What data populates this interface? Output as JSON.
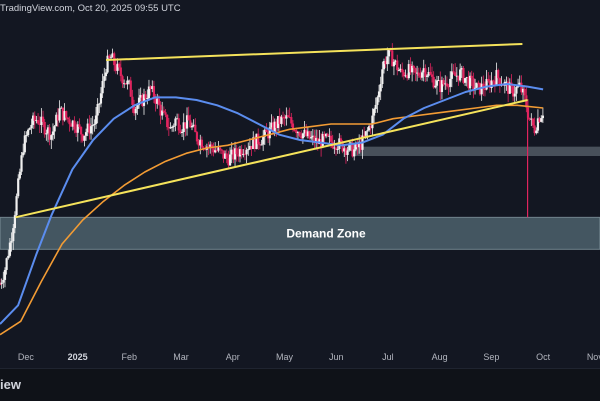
{
  "header": {
    "text": "TradingView.com, Oct 20, 2025 09:55 UTC"
  },
  "footer": {
    "brand": "iew"
  },
  "colors": {
    "background": "#131722",
    "up_candle": "#f0f0f0",
    "down_candle": "#e0245e",
    "ma_fast": "#5b8def",
    "ma_slow": "#f39c34",
    "trendline": "#f5e35b",
    "demand_zone": "#6e8b96",
    "support_band": "#8a96a0"
  },
  "chart_data": {
    "type": "candlestick",
    "title": "",
    "xlabel": "",
    "ylabel": "",
    "x_ticks": [
      {
        "label": "Dec",
        "x": 0.5,
        "bold": false
      },
      {
        "label": "2025",
        "x": 1.5,
        "bold": true
      },
      {
        "label": "Feb",
        "x": 2.5,
        "bold": false
      },
      {
        "label": "Mar",
        "x": 3.5,
        "bold": false
      },
      {
        "label": "Apr",
        "x": 4.5,
        "bold": false
      },
      {
        "label": "May",
        "x": 5.5,
        "bold": false
      },
      {
        "label": "Jun",
        "x": 6.5,
        "bold": false
      },
      {
        "label": "Jul",
        "x": 7.5,
        "bold": false
      },
      {
        "label": "Aug",
        "x": 8.5,
        "bold": false
      },
      {
        "label": "Sep",
        "x": 9.5,
        "bold": false
      },
      {
        "label": "Oct",
        "x": 10.5,
        "bold": false
      },
      {
        "label": "Nov",
        "x": 11.5,
        "bold": false
      }
    ],
    "price_path": [
      [
        0.0,
        2.4
      ],
      [
        0.1,
        3.0
      ],
      [
        0.22,
        4.2
      ],
      [
        0.32,
        5.6
      ],
      [
        0.45,
        7.6
      ],
      [
        0.6,
        8.4
      ],
      [
        0.72,
        8.6
      ],
      [
        0.85,
        8.3
      ],
      [
        1.0,
        8.0
      ],
      [
        1.15,
        8.9
      ],
      [
        1.3,
        8.6
      ],
      [
        1.45,
        8.4
      ],
      [
        1.6,
        8.0
      ],
      [
        1.75,
        8.3
      ],
      [
        1.85,
        8.5
      ],
      [
        1.95,
        9.5
      ],
      [
        2.05,
        10.6
      ],
      [
        2.15,
        10.9
      ],
      [
        2.25,
        10.5
      ],
      [
        2.35,
        10.2
      ],
      [
        2.5,
        9.8
      ],
      [
        2.6,
        9.0
      ],
      [
        2.75,
        9.3
      ],
      [
        2.9,
        9.7
      ],
      [
        3.0,
        9.4
      ],
      [
        3.15,
        8.7
      ],
      [
        3.3,
        8.2
      ],
      [
        3.4,
        8.6
      ],
      [
        3.5,
        8.3
      ],
      [
        3.65,
        8.5
      ],
      [
        3.8,
        7.9
      ],
      [
        4.0,
        7.6
      ],
      [
        4.2,
        7.4
      ],
      [
        4.4,
        7.1
      ],
      [
        4.5,
        7.2
      ],
      [
        4.7,
        7.5
      ],
      [
        4.9,
        7.7
      ],
      [
        5.1,
        7.9
      ],
      [
        5.25,
        8.2
      ],
      [
        5.4,
        8.5
      ],
      [
        5.55,
        8.6
      ],
      [
        5.75,
        8.2
      ],
      [
        5.95,
        7.9
      ],
      [
        6.15,
        7.7
      ],
      [
        6.3,
        7.8
      ],
      [
        6.5,
        7.7
      ],
      [
        6.7,
        7.5
      ],
      [
        6.85,
        7.4
      ],
      [
        7.0,
        7.7
      ],
      [
        7.1,
        8.1
      ],
      [
        7.2,
        8.6
      ],
      [
        7.3,
        9.4
      ],
      [
        7.4,
        10.6
      ],
      [
        7.5,
        11.0
      ],
      [
        7.6,
        10.8
      ],
      [
        7.75,
        10.3
      ],
      [
        7.9,
        10.4
      ],
      [
        8.05,
        10.2
      ],
      [
        8.2,
        10.5
      ],
      [
        8.35,
        10.1
      ],
      [
        8.5,
        9.8
      ],
      [
        8.7,
        10.1
      ],
      [
        8.9,
        10.3
      ],
      [
        9.05,
        10.0
      ],
      [
        9.25,
        9.7
      ],
      [
        9.45,
        9.9
      ],
      [
        9.6,
        10.2
      ],
      [
        9.75,
        9.9
      ],
      [
        9.9,
        9.6
      ],
      [
        10.05,
        9.8
      ],
      [
        10.15,
        9.3
      ],
      [
        10.25,
        8.5
      ],
      [
        10.33,
        8.2
      ],
      [
        10.4,
        8.6
      ],
      [
        10.5,
        8.9
      ]
    ],
    "y_range": [
      0,
      12.6
    ],
    "x_range": [
      0,
      11.6
    ],
    "ma_fast": [
      [
        0.0,
        0.9
      ],
      [
        0.35,
        1.6
      ],
      [
        0.7,
        3.5
      ],
      [
        1.0,
        5.0
      ],
      [
        1.4,
        6.7
      ],
      [
        1.8,
        7.8
      ],
      [
        2.2,
        8.6
      ],
      [
        2.6,
        9.1
      ],
      [
        3.0,
        9.4
      ],
      [
        3.4,
        9.4
      ],
      [
        3.8,
        9.3
      ],
      [
        4.2,
        9.1
      ],
      [
        4.6,
        8.8
      ],
      [
        5.0,
        8.4
      ],
      [
        5.4,
        8.0
      ],
      [
        5.8,
        7.8
      ],
      [
        6.2,
        7.7
      ],
      [
        6.6,
        7.6
      ],
      [
        7.0,
        7.7
      ],
      [
        7.4,
        8.0
      ],
      [
        7.8,
        8.6
      ],
      [
        8.2,
        9.0
      ],
      [
        8.6,
        9.3
      ],
      [
        9.0,
        9.6
      ],
      [
        9.4,
        9.8
      ],
      [
        9.8,
        9.9
      ],
      [
        10.2,
        9.8
      ],
      [
        10.5,
        9.7
      ]
    ],
    "ma_slow": [
      [
        0.0,
        0.5
      ],
      [
        0.4,
        1.0
      ],
      [
        0.8,
        2.5
      ],
      [
        1.2,
        3.9
      ],
      [
        1.6,
        4.8
      ],
      [
        2.0,
        5.5
      ],
      [
        2.4,
        6.1
      ],
      [
        2.8,
        6.6
      ],
      [
        3.2,
        7.0
      ],
      [
        3.6,
        7.3
      ],
      [
        4.0,
        7.5
      ],
      [
        4.4,
        7.6
      ],
      [
        4.8,
        7.8
      ],
      [
        5.2,
        8.0
      ],
      [
        5.6,
        8.2
      ],
      [
        6.0,
        8.3
      ],
      [
        6.4,
        8.4
      ],
      [
        6.8,
        8.4
      ],
      [
        7.2,
        8.4
      ],
      [
        7.6,
        8.6
      ],
      [
        8.0,
        8.7
      ],
      [
        8.4,
        8.8
      ],
      [
        8.8,
        8.9
      ],
      [
        9.2,
        9.0
      ],
      [
        9.6,
        9.1
      ],
      [
        10.0,
        9.1
      ],
      [
        10.5,
        9.0
      ]
    ],
    "upper_trendline": [
      [
        2.05,
        10.8
      ],
      [
        10.1,
        11.4
      ]
    ],
    "lower_trendline": [
      [
        0.3,
        4.9
      ],
      [
        10.2,
        9.3
      ]
    ],
    "demand_zone": {
      "label": "Demand Zone",
      "x0": 0,
      "x1": 11.6,
      "y0": 3.7,
      "y1": 4.9
    },
    "support_band": {
      "x0": 6.8,
      "x1": 11.6,
      "y0": 7.2,
      "y1": 7.55
    },
    "wick_spike": {
      "x": 10.2,
      "y_top": 8.8,
      "y_bottom": 4.9
    }
  }
}
